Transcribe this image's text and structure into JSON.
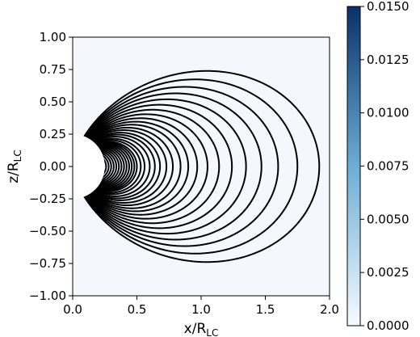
{
  "chart_data": {
    "type": "contour",
    "xlabel": {
      "main": "x/R",
      "sub": "LC"
    },
    "ylabel": {
      "main": "z/R",
      "sub": "LC"
    },
    "xlim": [
      0.0,
      2.0
    ],
    "ylim": [
      -1.0,
      1.0
    ],
    "xticks": [
      "0.0",
      "0.5",
      "1.0",
      "1.5",
      "2.0"
    ],
    "yticks": [
      "1.00",
      "0.75",
      "0.50",
      "0.25",
      "0.00",
      "−0.25",
      "−0.50",
      "−0.75",
      "−1.00"
    ],
    "colorbar": {
      "range": [
        0.0,
        0.015
      ],
      "ticks": [
        "0.0150",
        "0.0125",
        "0.0100",
        "0.0075",
        "0.0050",
        "0.0025",
        "0.0000"
      ],
      "color_low": "#f7fbff",
      "color_high": "#08306b"
    },
    "star_radius": 0.25,
    "field_line_footpoints": [
      0.26,
      0.28,
      0.3,
      0.32,
      0.34,
      0.36,
      0.38,
      0.4,
      0.42,
      0.44,
      0.46,
      0.48,
      0.5,
      0.53,
      0.56,
      0.6,
      0.64,
      0.68,
      0.73,
      0.78,
      0.84,
      0.9,
      0.97,
      1.05,
      1.14,
      1.24,
      1.35,
      1.47,
      1.6,
      1.75,
      1.92
    ]
  }
}
